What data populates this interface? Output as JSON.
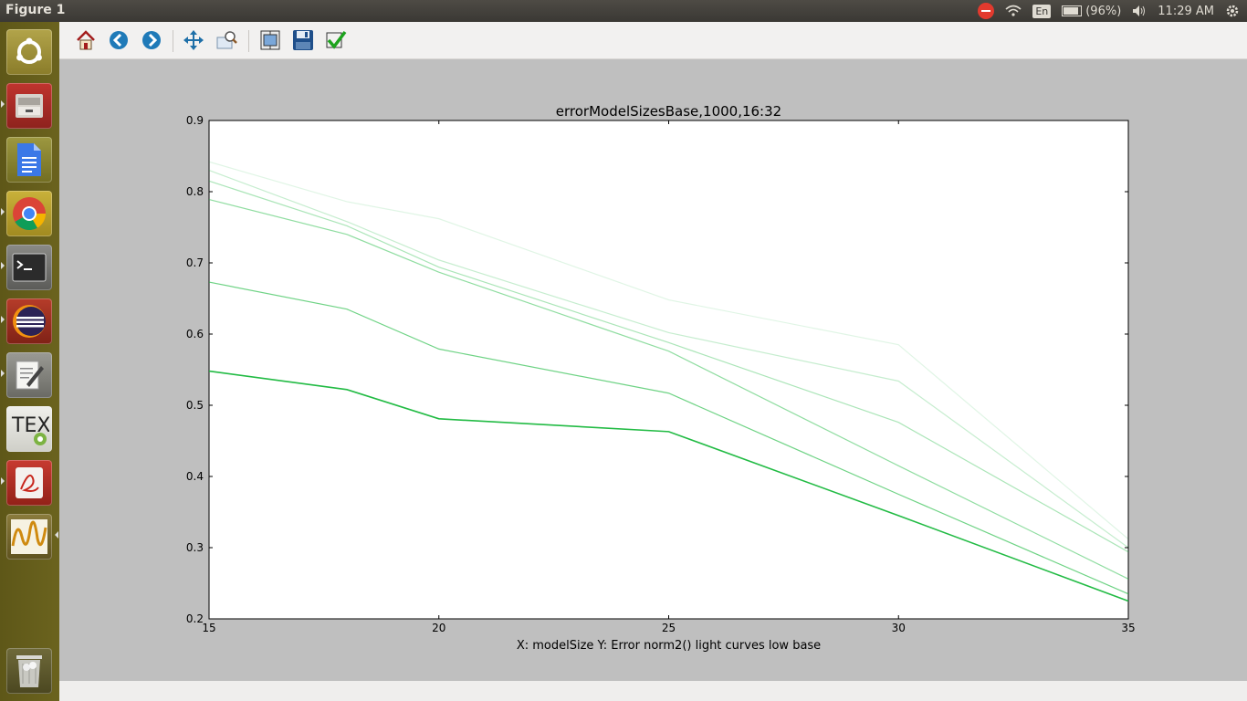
{
  "window": {
    "title": "Figure 1"
  },
  "tray": {
    "language": "En",
    "battery": "(96%)",
    "clock": "11:29 AM"
  },
  "launcher": {
    "items": [
      {
        "icon": "ubuntu-dash-icon"
      },
      {
        "icon": "files-icon"
      },
      {
        "icon": "docs-icon"
      },
      {
        "icon": "chrome-icon"
      },
      {
        "icon": "terminal-icon"
      },
      {
        "icon": "eclipse-icon"
      },
      {
        "icon": "text-editor-icon"
      },
      {
        "icon": "texmaker-icon"
      },
      {
        "icon": "pdf-reader-icon"
      },
      {
        "icon": "oscilloscope-icon"
      },
      {
        "icon": "trash-icon"
      }
    ]
  },
  "toolbar": {
    "buttons": [
      {
        "icon": "home-icon"
      },
      {
        "icon": "back-icon"
      },
      {
        "icon": "forward-icon"
      },
      {
        "icon": "pan-icon"
      },
      {
        "icon": "zoom-icon"
      },
      {
        "icon": "subplots-icon"
      },
      {
        "icon": "save-icon"
      },
      {
        "icon": "edit-curves-icon"
      }
    ]
  },
  "colors": {
    "line": "#22bb44"
  },
  "chart_data": {
    "type": "line",
    "title": "errorModelSizesBase,1000,16:32",
    "xlabel": "X: modelSize Y: Error norm2() light curves low base",
    "ylabel": "",
    "xlim": [
      15,
      35
    ],
    "ylim": [
      0.2,
      0.9
    ],
    "xticks": [
      "15",
      "20",
      "25",
      "30",
      "35"
    ],
    "yticks": [
      "0.2",
      "0.3",
      "0.4",
      "0.5",
      "0.6",
      "0.7",
      "0.8",
      "0.9"
    ],
    "x": [
      15,
      18,
      20,
      25,
      30,
      35
    ],
    "series": [
      {
        "opacity": 1.0,
        "values": [
          0.548,
          0.522,
          0.481,
          0.463,
          0.345,
          0.225
        ]
      },
      {
        "opacity": 0.65,
        "values": [
          0.673,
          0.635,
          0.579,
          0.517,
          0.375,
          0.235
        ]
      },
      {
        "opacity": 0.5,
        "values": [
          0.789,
          0.74,
          0.687,
          0.576,
          0.415,
          0.256
        ]
      },
      {
        "opacity": 0.38,
        "values": [
          0.815,
          0.752,
          0.694,
          0.588,
          0.476,
          0.294
        ]
      },
      {
        "opacity": 0.26,
        "values": [
          0.83,
          0.758,
          0.704,
          0.602,
          0.534,
          0.3
        ]
      },
      {
        "opacity": 0.14,
        "values": [
          0.842,
          0.786,
          0.762,
          0.648,
          0.585,
          0.312
        ]
      }
    ],
    "grid": false,
    "legend": "none"
  }
}
